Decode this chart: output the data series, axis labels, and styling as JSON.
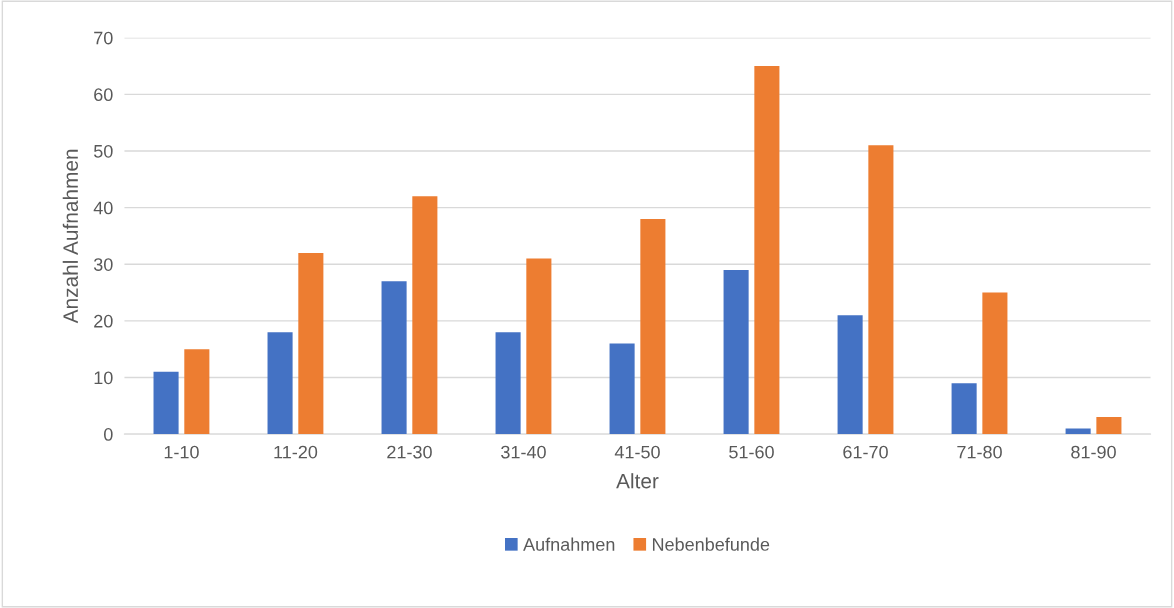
{
  "chart_data": {
    "type": "bar",
    "xlabel": "Alter",
    "ylabel": "Anzahl Aufnahmen",
    "categories": [
      "1-10",
      "11-20",
      "21-30",
      "31-40",
      "41-50",
      "51-60",
      "61-70",
      "71-80",
      "81-90"
    ],
    "series": [
      {
        "name": "Aufnahmen",
        "color": "#4472c4",
        "values": [
          11,
          18,
          27,
          18,
          16,
          29,
          21,
          9,
          1
        ]
      },
      {
        "name": "Nebenbefunde",
        "color": "#ed7d31",
        "values": [
          15,
          32,
          42,
          31,
          38,
          65,
          51,
          25,
          3
        ]
      }
    ],
    "ylim": [
      0,
      70
    ],
    "yticks": [
      0,
      10,
      20,
      30,
      40,
      50,
      60,
      70
    ],
    "grid": "y",
    "legend": "bottom"
  }
}
